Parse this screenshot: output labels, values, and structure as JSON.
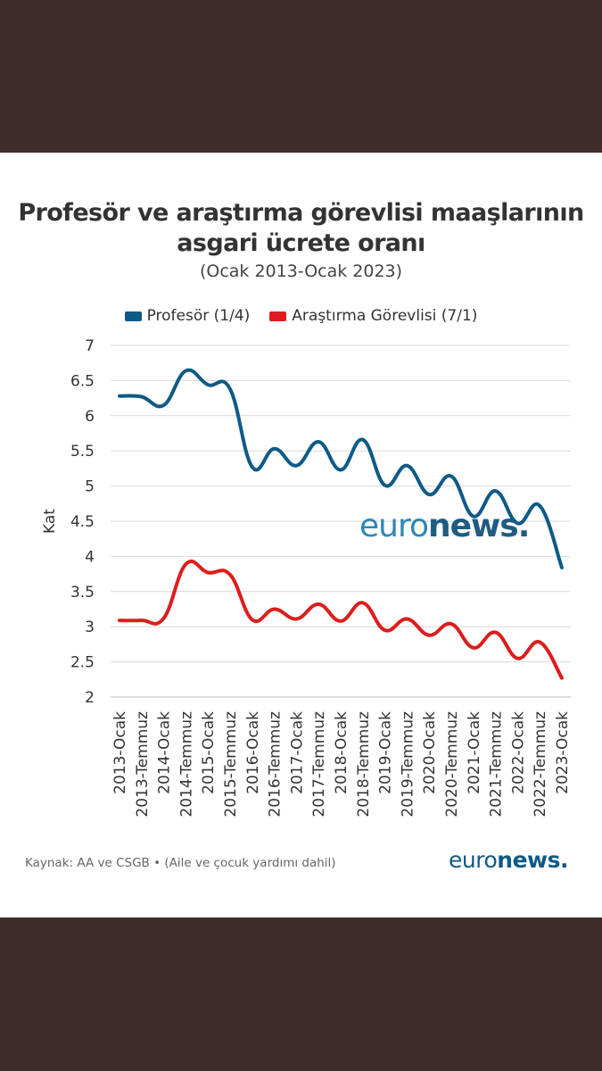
{
  "colors": {
    "page_bg": "#3f2d2b",
    "card_bg": "#ffffff",
    "professor": "#0e5a86",
    "researcher": "#dd1d1d",
    "watermark_light": "#1b7dae",
    "watermark_dark": "#0e4f78"
  },
  "brand": {
    "watermark_part1": "euro",
    "watermark_part2": "news.",
    "logo_part1": "euro",
    "logo_part2": "news."
  },
  "footer": {
    "source": "Kaynak: AA ve CSGB • (Aile ve çocuk yardımı dahil)"
  },
  "chart_data": {
    "type": "line",
    "title_line1": "Profesör ve araştırma görevlisi maaşlarının",
    "title_line2": "asgari ücrete oranı",
    "subtitle": "(Ocak 2013-Ocak 2023)",
    "xlabel": "",
    "ylabel": "Kat",
    "ylim": [
      2,
      7
    ],
    "yticks": [
      2,
      2.5,
      3,
      3.5,
      4,
      4.5,
      5,
      5.5,
      6,
      6.5,
      7
    ],
    "yticklabels": [
      "2",
      "2.5",
      "3",
      "3.5",
      "4",
      "4.5",
      "5",
      "5.5",
      "6",
      "6.5",
      "7"
    ],
    "grid": true,
    "legend_position": "top-center",
    "categories": [
      "2013-Ocak",
      "2013-Temmuz",
      "2014-Ocak",
      "2014-Temmuz",
      "2015-Ocak",
      "2015-Temmuz",
      "2016-Ocak",
      "2016-Temmuz",
      "2017-Ocak",
      "2017-Temmuz",
      "2018-Ocak",
      "2018-Temmuz",
      "2019-Ocak",
      "2019-Temmuz",
      "2020-Ocak",
      "2020-Temmuz",
      "2021-Ocak",
      "2021-Temmuz",
      "2022-Ocak",
      "2022-Temmuz",
      "2023-Ocak"
    ],
    "series": [
      {
        "name": "Profesör (1/4)",
        "values": [
          6.28,
          6.27,
          6.15,
          6.64,
          6.44,
          6.38,
          5.27,
          5.53,
          5.29,
          5.63,
          5.23,
          5.66,
          5.01,
          5.29,
          4.88,
          5.14,
          4.57,
          4.93,
          4.47,
          4.72,
          3.84
        ]
      },
      {
        "name": "Araştırma Görevlisi (7/1)",
        "values": [
          3.09,
          3.09,
          3.12,
          3.89,
          3.77,
          3.74,
          3.1,
          3.25,
          3.11,
          3.32,
          3.08,
          3.34,
          2.95,
          3.11,
          2.88,
          3.04,
          2.7,
          2.92,
          2.55,
          2.78,
          2.27
        ]
      }
    ]
  }
}
